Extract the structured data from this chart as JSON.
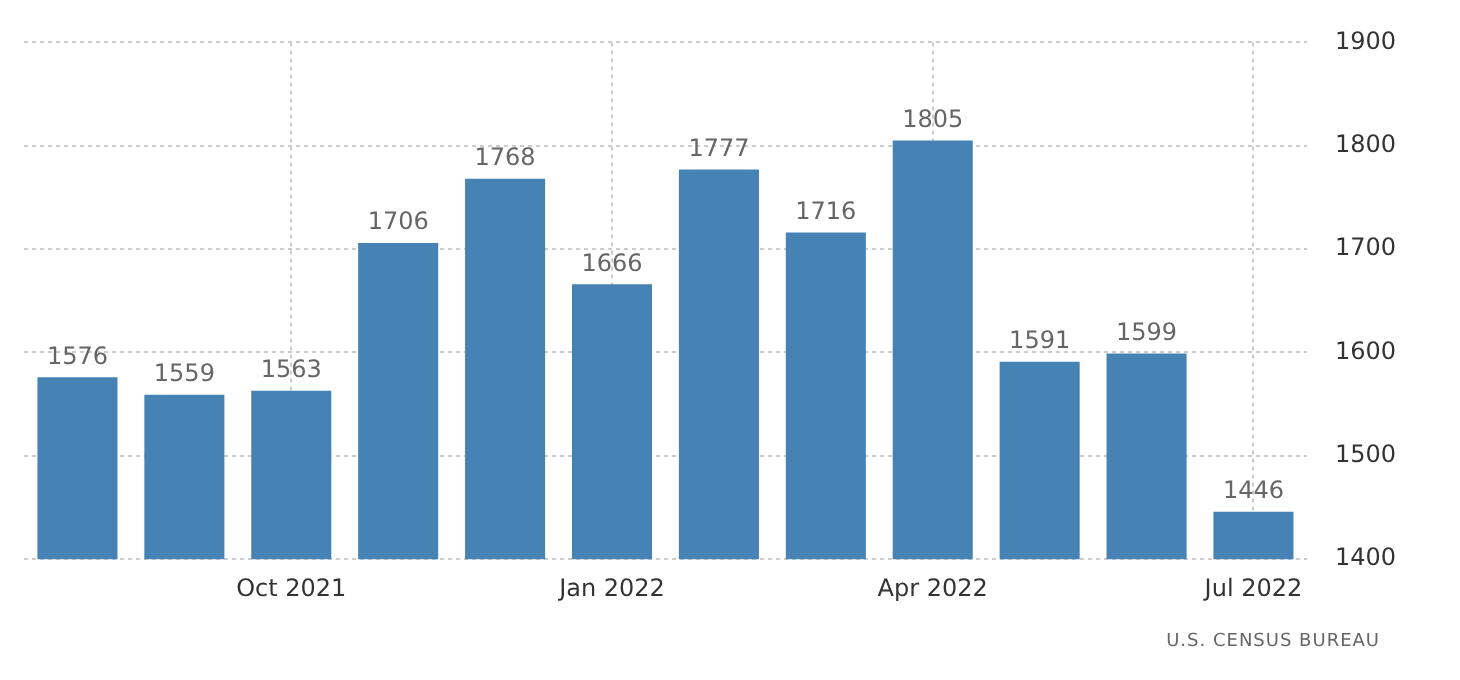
{
  "chart_data": {
    "type": "bar",
    "categories": [
      null,
      null,
      "Oct 2021",
      null,
      null,
      "Jan 2022",
      null,
      null,
      "Apr 2022",
      null,
      null,
      "Jul 2022"
    ],
    "values": [
      1576,
      1559,
      1563,
      1706,
      1768,
      1666,
      1777,
      1716,
      1805,
      1591,
      1599,
      1446
    ],
    "color": "#4682b4",
    "ylim": [
      1400,
      1900
    ],
    "yticks": [
      1400,
      1500,
      1600,
      1700,
      1800,
      1900
    ],
    "grid": true,
    "data_labels": true,
    "legend": false,
    "annotations": [
      "U.S. CENSUS BUREAU"
    ]
  }
}
